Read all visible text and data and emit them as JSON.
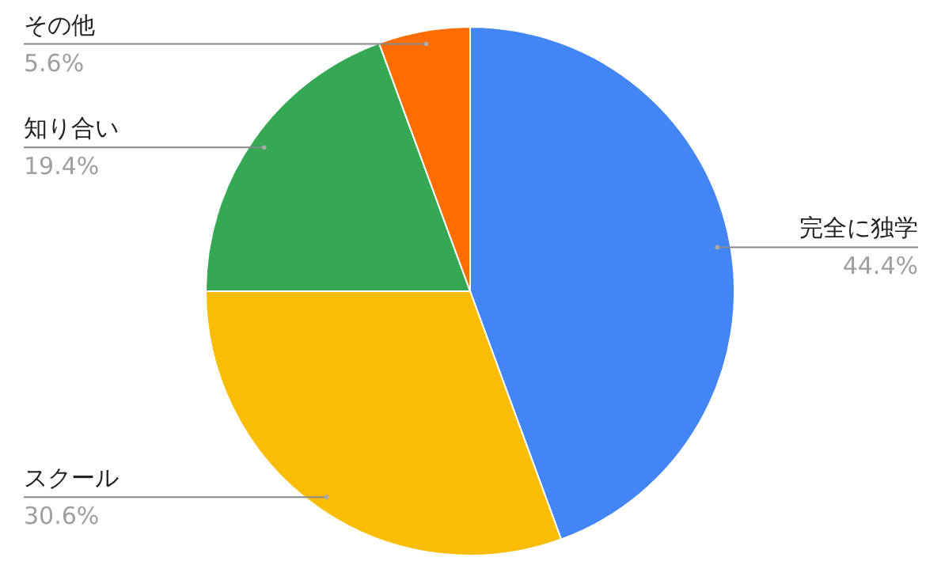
{
  "chart_data": {
    "type": "pie",
    "categories": [
      "完全に独学",
      "スクール",
      "知り合い",
      "その他"
    ],
    "values": [
      44.4,
      30.6,
      19.4,
      5.6
    ],
    "colors": [
      "#4285f4",
      "#fbbc04",
      "#34a853",
      "#ff6d01"
    ],
    "value_labels": [
      "44.4%",
      "30.6%",
      "19.4%",
      "5.6%"
    ],
    "legend": false
  }
}
